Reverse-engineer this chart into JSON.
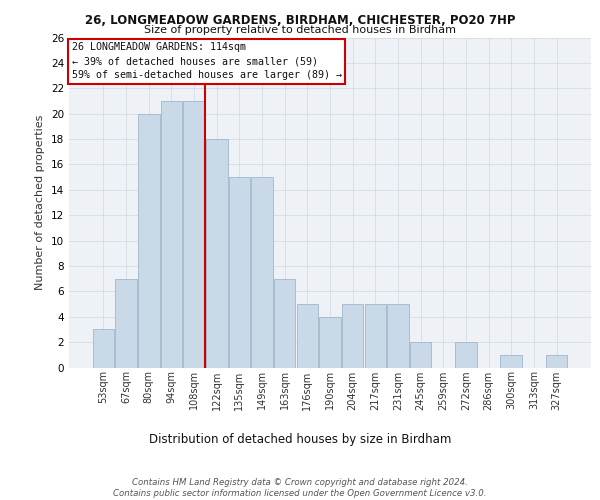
{
  "title1": "26, LONGMEADOW GARDENS, BIRDHAM, CHICHESTER, PO20 7HP",
  "title2": "Size of property relative to detached houses in Birdham",
  "xlabel": "Distribution of detached houses by size in Birdham",
  "ylabel": "Number of detached properties",
  "bar_labels": [
    "53sqm",
    "67sqm",
    "80sqm",
    "94sqm",
    "108sqm",
    "122sqm",
    "135sqm",
    "149sqm",
    "163sqm",
    "176sqm",
    "190sqm",
    "204sqm",
    "217sqm",
    "231sqm",
    "245sqm",
    "259sqm",
    "272sqm",
    "286sqm",
    "300sqm",
    "313sqm",
    "327sqm"
  ],
  "bar_values": [
    3,
    7,
    20,
    21,
    21,
    18,
    15,
    15,
    7,
    5,
    4,
    5,
    5,
    5,
    2,
    0,
    2,
    0,
    1,
    0,
    1
  ],
  "bar_color": "#c9d9e8",
  "bar_edgecolor": "#a0b8cc",
  "property_line_x": 4.5,
  "annotation_lines": [
    "26 LONGMEADOW GARDENS: 114sqm",
    "← 39% of detached houses are smaller (59)",
    "59% of semi-detached houses are larger (89) →"
  ],
  "annotation_box_color": "#ffffff",
  "annotation_box_edgecolor": "#cc0000",
  "vline_color": "#cc0000",
  "grid_color": "#d0d8e0",
  "footnote": "Contains HM Land Registry data © Crown copyright and database right 2024.\nContains public sector information licensed under the Open Government Licence v3.0.",
  "ylim": [
    0,
    26
  ],
  "yticks": [
    0,
    2,
    4,
    6,
    8,
    10,
    12,
    14,
    16,
    18,
    20,
    22,
    24,
    26
  ],
  "bg_color": "#eef2f7"
}
